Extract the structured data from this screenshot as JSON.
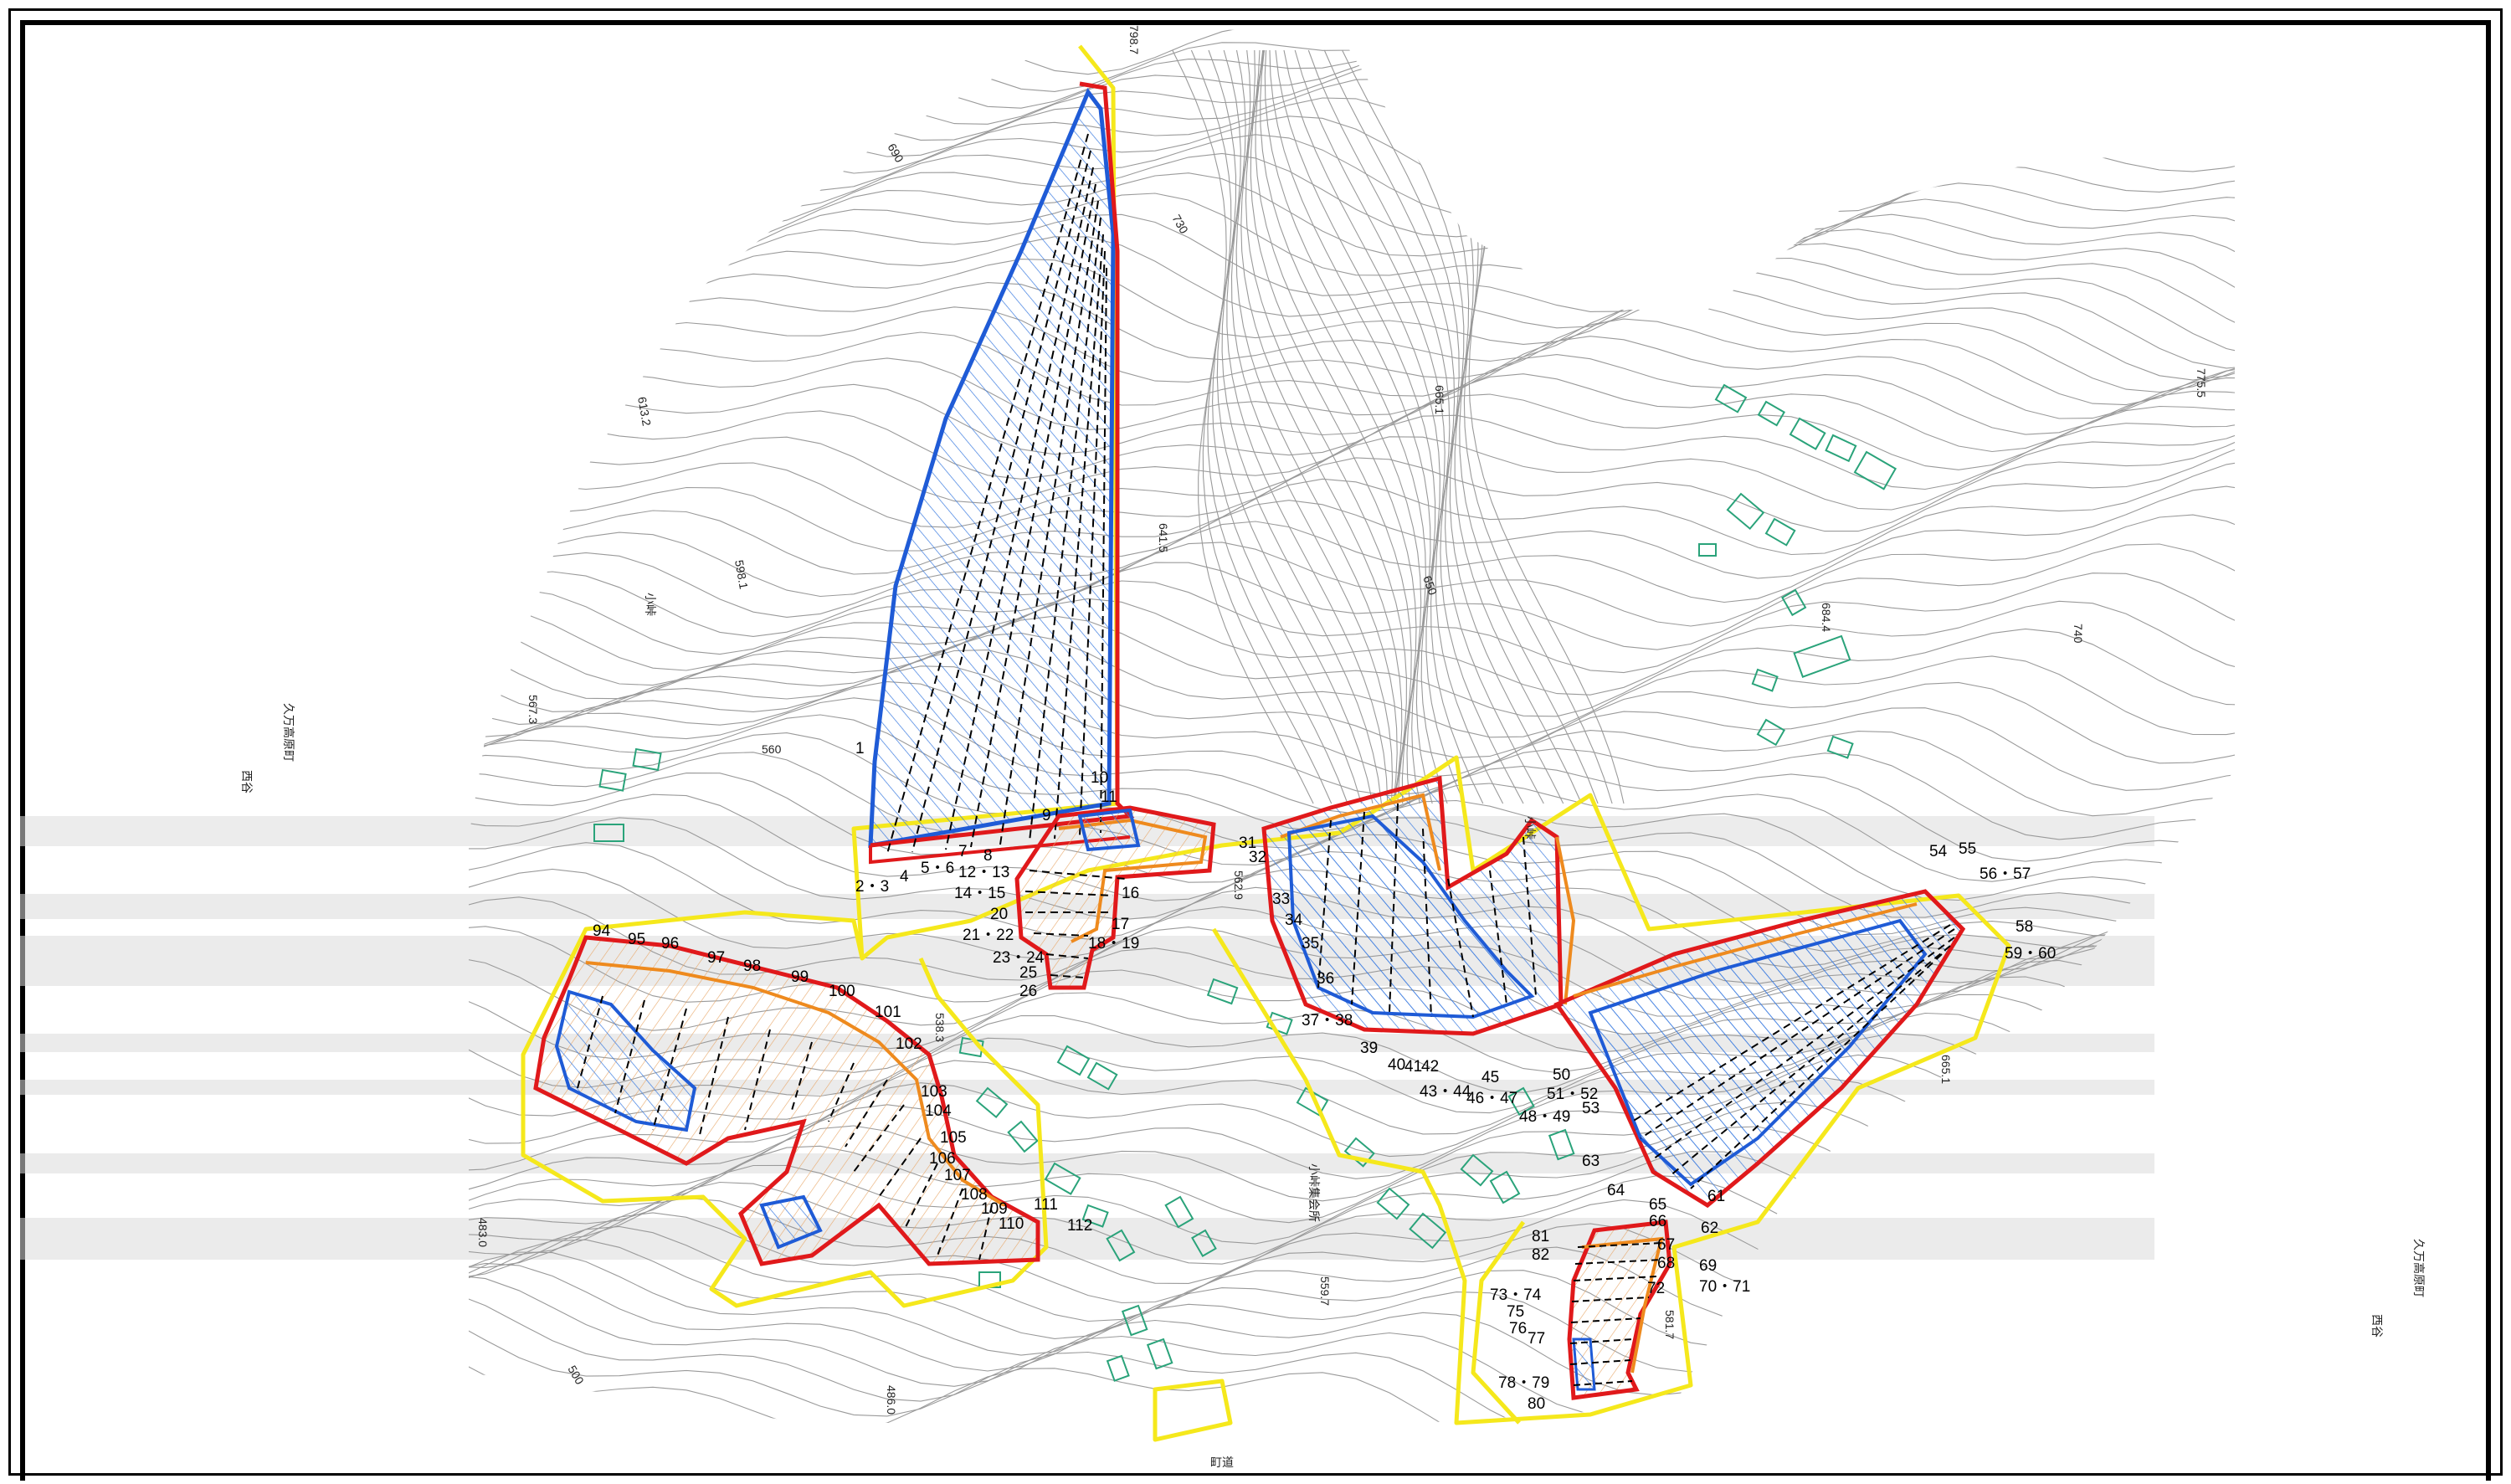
{
  "colors": {
    "contour": "#9a9a9a",
    "boundary_yellow": "#f5e81c",
    "boundary_red": "#e0191b",
    "boundary_orange": "#ee8a1e",
    "boundary_blue": "#1f5bd6",
    "hatch_blue": "#3b7be0",
    "hatch_orange": "#e8a86a",
    "building": "#2aa37a",
    "band": "#dcdcdc",
    "frame": "#000000"
  },
  "side_labels": {
    "left_town": "久万高原町",
    "left_area": "西谷",
    "right_town": "久万高原町",
    "right_area": "西谷"
  },
  "elevations": [
    "798.7",
    "690",
    "730",
    "613.2",
    "598.1",
    "567.3",
    "560",
    "665.1",
    "641.5",
    "650",
    "775.5",
    "684.4",
    "740",
    "562.9",
    "538.3",
    "483.0",
    "486.0",
    "500",
    "559.7",
    "581.7",
    "665.1"
  ],
  "place_labels": [
    "小峠",
    "小峠",
    "小峠集会所",
    "町道"
  ],
  "numbers": [
    "1",
    "2・3",
    "4",
    "5・6",
    "7",
    "8",
    "9",
    "10",
    "11",
    "12・13",
    "14・15",
    "16",
    "17",
    "18・19",
    "20",
    "21・22",
    "23・24",
    "25",
    "26",
    "31",
    "32",
    "33",
    "34",
    "35",
    "36",
    "37・38",
    "39",
    "40",
    "41",
    "42",
    "43・44",
    "45",
    "46・47",
    "48・49",
    "50",
    "51・52",
    "53",
    "54",
    "55",
    "56・57",
    "58",
    "59・60",
    "61",
    "62",
    "63",
    "64",
    "65",
    "66",
    "67",
    "68",
    "69",
    "70・71",
    "72",
    "73・74",
    "75",
    "76",
    "77",
    "78・79",
    "80",
    "81",
    "82",
    "94",
    "95",
    "96",
    "97",
    "98",
    "99",
    "100",
    "101",
    "102",
    "103",
    "104",
    "105",
    "106",
    "107",
    "108",
    "109",
    "110",
    "111",
    "112"
  ]
}
